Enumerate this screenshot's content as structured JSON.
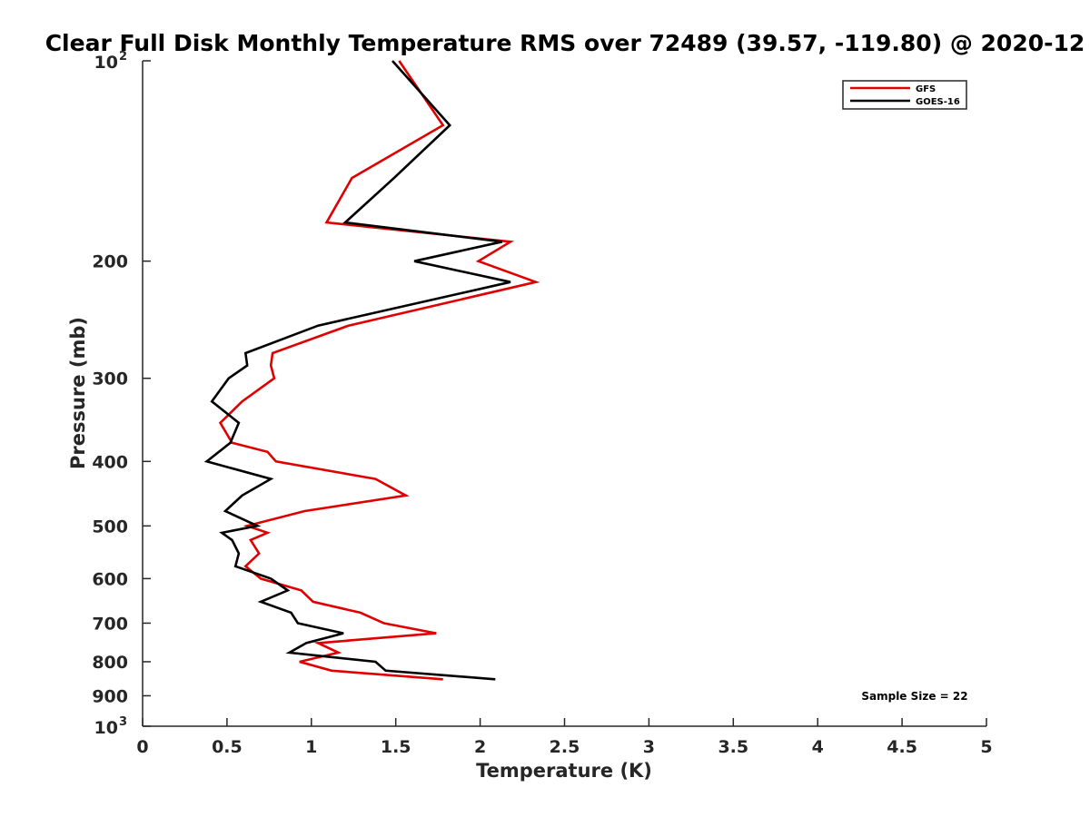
{
  "chart_data": {
    "type": "line",
    "title": "Clear Full Disk Monthly Temperature RMS over 72489 (39.57, -119.80) @ 2020-12",
    "xlabel": "Temperature (K)",
    "ylabel": "Pressure (mb)",
    "xlim": [
      0,
      5
    ],
    "ylim": [
      100,
      1000
    ],
    "y_scale": "log",
    "y_reversed": true,
    "grid": false,
    "legend_position": "top-right",
    "x_ticks": [
      {
        "value": 0,
        "label": "0"
      },
      {
        "value": 0.5,
        "label": "0.5"
      },
      {
        "value": 1,
        "label": "1"
      },
      {
        "value": 1.5,
        "label": "1.5"
      },
      {
        "value": 2,
        "label": "2"
      },
      {
        "value": 2.5,
        "label": "2.5"
      },
      {
        "value": 3,
        "label": "3"
      },
      {
        "value": 3.5,
        "label": "3.5"
      },
      {
        "value": 4,
        "label": "4"
      },
      {
        "value": 4.5,
        "label": "4.5"
      },
      {
        "value": 5,
        "label": "5"
      }
    ],
    "y_ticks": [
      {
        "value": 100,
        "label": "10",
        "exp": "2"
      },
      {
        "value": 200,
        "label": "200"
      },
      {
        "value": 300,
        "label": "300"
      },
      {
        "value": 400,
        "label": "400"
      },
      {
        "value": 500,
        "label": "500"
      },
      {
        "value": 600,
        "label": "600"
      },
      {
        "value": 700,
        "label": "700"
      },
      {
        "value": 800,
        "label": "800"
      },
      {
        "value": 900,
        "label": "900"
      },
      {
        "value": 1000,
        "label": "10",
        "exp": "3"
      }
    ],
    "annotation": "Sample Size = 22",
    "series": [
      {
        "name": "GFS",
        "color": "#e00000",
        "points": [
          {
            "p": 100,
            "t": 1.52
          },
          {
            "p": 125,
            "t": 1.78
          },
          {
            "p": 150,
            "t": 1.24
          },
          {
            "p": 175,
            "t": 1.09
          },
          {
            "p": 187,
            "t": 2.18
          },
          {
            "p": 200,
            "t": 1.99
          },
          {
            "p": 215,
            "t": 2.33
          },
          {
            "p": 250,
            "t": 1.22
          },
          {
            "p": 275,
            "t": 0.77
          },
          {
            "p": 287,
            "t": 0.76
          },
          {
            "p": 300,
            "t": 0.78
          },
          {
            "p": 325,
            "t": 0.59
          },
          {
            "p": 350,
            "t": 0.46
          },
          {
            "p": 375,
            "t": 0.53
          },
          {
            "p": 387,
            "t": 0.74
          },
          {
            "p": 400,
            "t": 0.79
          },
          {
            "p": 425,
            "t": 1.38
          },
          {
            "p": 450,
            "t": 1.56
          },
          {
            "p": 475,
            "t": 0.96
          },
          {
            "p": 500,
            "t": 0.62
          },
          {
            "p": 512,
            "t": 0.74
          },
          {
            "p": 525,
            "t": 0.64
          },
          {
            "p": 550,
            "t": 0.69
          },
          {
            "p": 575,
            "t": 0.61
          },
          {
            "p": 600,
            "t": 0.7
          },
          {
            "p": 625,
            "t": 0.94
          },
          {
            "p": 650,
            "t": 1.01
          },
          {
            "p": 675,
            "t": 1.29
          },
          {
            "p": 700,
            "t": 1.43
          },
          {
            "p": 725,
            "t": 1.74
          },
          {
            "p": 750,
            "t": 1.04
          },
          {
            "p": 775,
            "t": 1.16
          },
          {
            "p": 800,
            "t": 0.93
          },
          {
            "p": 825,
            "t": 1.12
          },
          {
            "p": 850,
            "t": 1.78
          }
        ]
      },
      {
        "name": "GOES-16",
        "color": "#000000",
        "points": [
          {
            "p": 100,
            "t": 1.48
          },
          {
            "p": 125,
            "t": 1.82
          },
          {
            "p": 150,
            "t": 1.49
          },
          {
            "p": 175,
            "t": 1.2
          },
          {
            "p": 187,
            "t": 2.13
          },
          {
            "p": 200,
            "t": 1.61
          },
          {
            "p": 215,
            "t": 2.18
          },
          {
            "p": 250,
            "t": 1.04
          },
          {
            "p": 275,
            "t": 0.61
          },
          {
            "p": 287,
            "t": 0.62
          },
          {
            "p": 300,
            "t": 0.51
          },
          {
            "p": 325,
            "t": 0.41
          },
          {
            "p": 350,
            "t": 0.57
          },
          {
            "p": 375,
            "t": 0.52
          },
          {
            "p": 400,
            "t": 0.38
          },
          {
            "p": 425,
            "t": 0.76
          },
          {
            "p": 450,
            "t": 0.59
          },
          {
            "p": 475,
            "t": 0.49
          },
          {
            "p": 500,
            "t": 0.68
          },
          {
            "p": 512,
            "t": 0.47
          },
          {
            "p": 525,
            "t": 0.53
          },
          {
            "p": 550,
            "t": 0.57
          },
          {
            "p": 575,
            "t": 0.55
          },
          {
            "p": 600,
            "t": 0.76
          },
          {
            "p": 625,
            "t": 0.86
          },
          {
            "p": 650,
            "t": 0.7
          },
          {
            "p": 675,
            "t": 0.88
          },
          {
            "p": 700,
            "t": 0.92
          },
          {
            "p": 725,
            "t": 1.19
          },
          {
            "p": 750,
            "t": 0.97
          },
          {
            "p": 775,
            "t": 0.87
          },
          {
            "p": 800,
            "t": 1.38
          },
          {
            "p": 825,
            "t": 1.44
          },
          {
            "p": 850,
            "t": 2.09
          }
        ]
      }
    ]
  }
}
